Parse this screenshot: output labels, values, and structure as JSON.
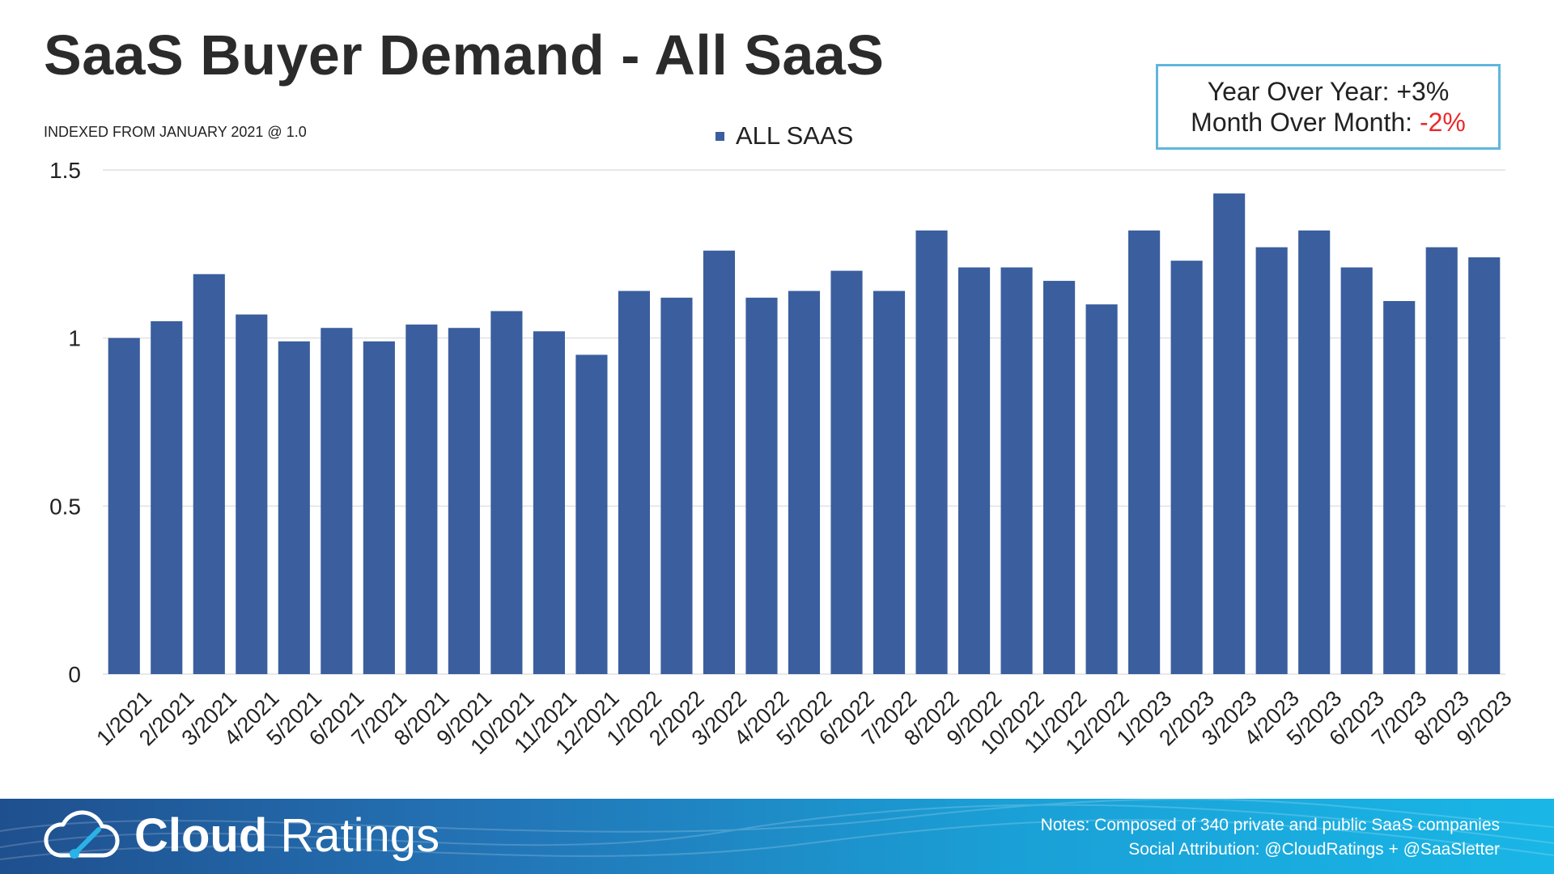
{
  "header": {
    "title": "SaaS Buyer Demand - All SaaS",
    "subtitle": "INDEXED FROM JANUARY 2021 @ 1.0"
  },
  "stats": {
    "yoy_label": "Year Over Year: ",
    "yoy_value": "+3%",
    "mom_label": "Month Over Month: ",
    "mom_value": "-2%",
    "mom_color": "#e8292b",
    "border_color": "#5fb6de"
  },
  "chart_data": {
    "type": "bar",
    "categories": [
      "1/2021",
      "2/2021",
      "3/2021",
      "4/2021",
      "5/2021",
      "6/2021",
      "7/2021",
      "8/2021",
      "9/2021",
      "10/2021",
      "11/2021",
      "12/2021",
      "1/2022",
      "2/2022",
      "3/2022",
      "4/2022",
      "5/2022",
      "6/2022",
      "7/2022",
      "8/2022",
      "9/2022",
      "10/2022",
      "11/2022",
      "12/2022",
      "1/2023",
      "2/2023",
      "3/2023",
      "4/2023",
      "5/2023",
      "6/2023",
      "7/2023",
      "8/2023",
      "9/2023"
    ],
    "series": [
      {
        "name": "ALL SAAS",
        "color": "#3a5e9e",
        "values": [
          1.0,
          1.05,
          1.19,
          1.07,
          0.99,
          1.03,
          0.99,
          1.04,
          1.03,
          1.08,
          1.02,
          0.95,
          1.14,
          1.12,
          1.26,
          1.12,
          1.14,
          1.2,
          1.14,
          1.32,
          1.21,
          1.21,
          1.17,
          1.1,
          1.32,
          1.23,
          1.43,
          1.27,
          1.32,
          1.21,
          1.11,
          1.27,
          1.24
        ]
      }
    ],
    "ylim": [
      0,
      1.5
    ],
    "yticks": [
      0,
      0.5,
      1,
      1.5
    ],
    "ytick_labels": [
      "0",
      "0.5",
      "1",
      "1.5"
    ],
    "grid": true,
    "legend_position": "top-center"
  },
  "footer": {
    "brand_bold": "Cloud",
    "brand_light": " Ratings",
    "notes_line1": "Notes: Composed of 340 private and public SaaS companies",
    "notes_line2": "Social Attribution: @CloudRatings + @SaaSletter"
  }
}
